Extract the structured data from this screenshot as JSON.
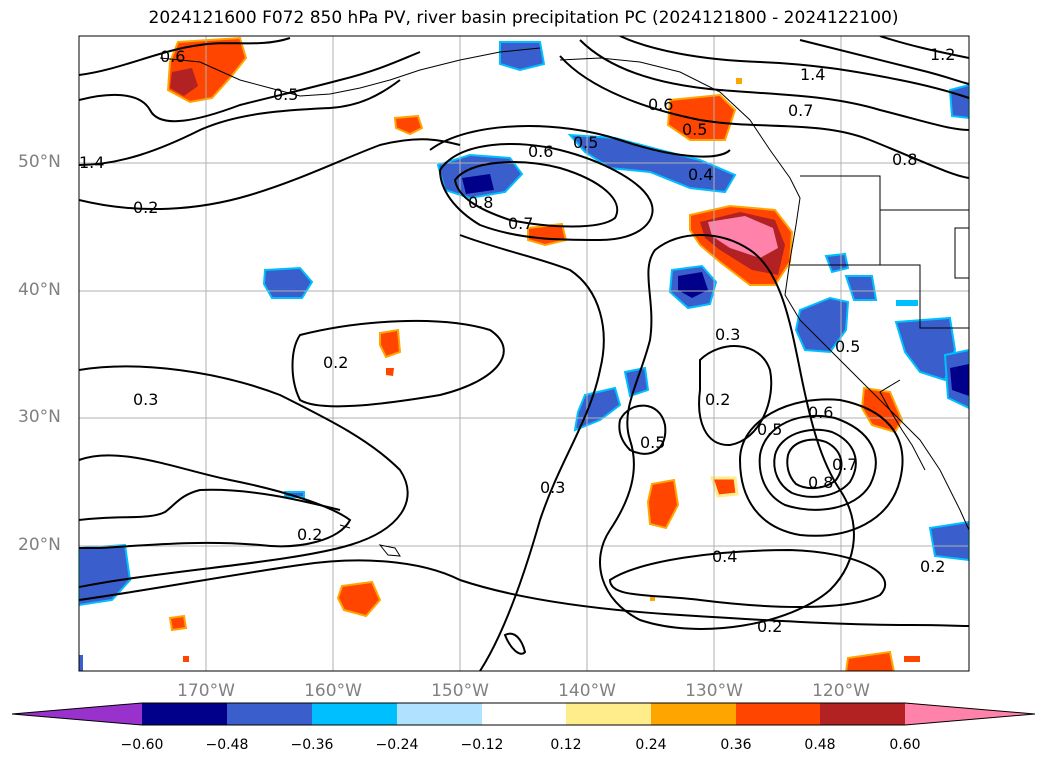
{
  "title": "2024121600 F072 850 hPa PV, river basin precipitation PC (2024121800 - 2024122100)",
  "lat_labels": [
    "50°N",
    "40°N",
    "30°N",
    "20°N"
  ],
  "lon_labels": [
    "170°W",
    "160°W",
    "150°W",
    "140°W",
    "130°W",
    "120°W"
  ],
  "contour_labels": [
    "0.6",
    "0.5",
    "1.4",
    "0.2",
    "0.6",
    "0.5",
    "0.4",
    "0.8",
    "0.7",
    "0.7",
    "1.4",
    "1.2",
    "0.6",
    "0.5",
    "0.8",
    "0.3",
    "0.2",
    "0.5",
    "0.6",
    "0.5",
    "0.7",
    "0.8",
    "0.3",
    "0.2",
    "0.3",
    "0.2",
    "0.4",
    "0.2",
    "0.2",
    "0.5"
  ],
  "colorbar": {
    "ticks": [
      "−0.60",
      "−0.48",
      "−0.36",
      "−0.24",
      "−0.12",
      "0.12",
      "0.24",
      "0.36",
      "0.48",
      "0.60"
    ],
    "colors": {
      "lt_neg060": "#9932cc",
      "neg060_048": "#00008b",
      "neg048_036": "#3a5fcd",
      "neg036_024": "#00bfff",
      "neg024_012": "#b0e2ff",
      "neg012_012": "#ffffff",
      "p012_024": "#ffec8b",
      "p024_036": "#ffa500",
      "p036_048": "#ff4500",
      "p048_060": "#b22222",
      "gt_060": "#ff82ab"
    }
  }
}
